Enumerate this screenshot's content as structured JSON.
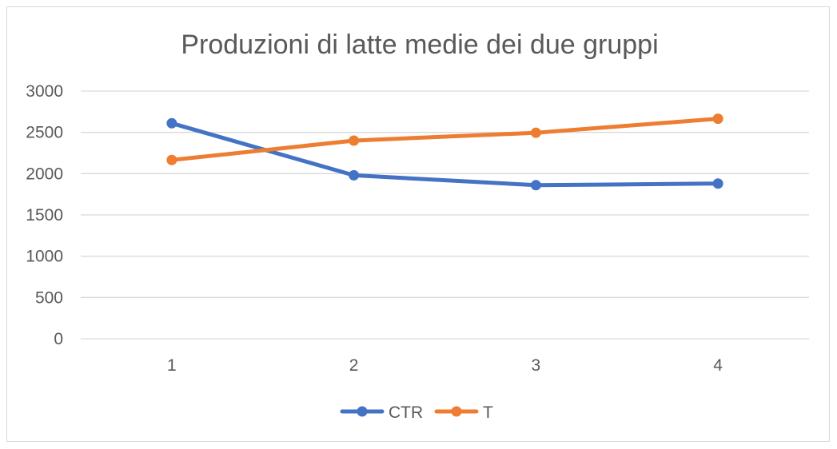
{
  "chart_data": {
    "type": "line",
    "title": "Produzioni di latte medie dei due gruppi",
    "xlabel": "",
    "ylabel": "",
    "categories": [
      "1",
      "2",
      "3",
      "4"
    ],
    "ylim": [
      0,
      3000
    ],
    "yticks": [
      0,
      500,
      1000,
      1500,
      2000,
      2500,
      3000
    ],
    "grid": true,
    "legend_position": "bottom",
    "series": [
      {
        "name": "CTR",
        "color": "#4472c4",
        "values": [
          2610,
          1980,
          1860,
          1880
        ]
      },
      {
        "name": "T",
        "color": "#ed7d31",
        "values": [
          2165,
          2400,
          2495,
          2665
        ]
      }
    ]
  }
}
